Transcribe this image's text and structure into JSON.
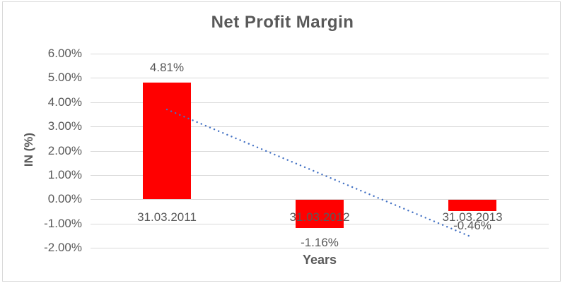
{
  "chart_data": {
    "type": "bar",
    "title": "Net Profit Margin",
    "xlabel": "Years",
    "ylabel": "IN (%)",
    "categories": [
      "31.03.2011",
      "31.03.2012",
      "31.03.2013"
    ],
    "values": [
      4.81,
      -1.16,
      -0.46
    ],
    "data_labels": [
      "4.81%",
      "-1.16%",
      "-0.46%"
    ],
    "ytick_labels": [
      "6.00%",
      "5.00%",
      "4.00%",
      "3.00%",
      "2.00%",
      "1.00%",
      "0.00%",
      "-1.00%",
      "-2.00%"
    ],
    "ytick_values": [
      6,
      5,
      4,
      3,
      2,
      1,
      0,
      -1,
      -2
    ],
    "ylim": [
      -2,
      6
    ],
    "grid": true,
    "legend": "none",
    "colors": {
      "bar": "#ff0000",
      "text": "#595959",
      "gridline": "#d9d9d9",
      "trendline": "#4472c4",
      "background": "#ffffff"
    },
    "trendline": {
      "type": "linear",
      "style": "dotted",
      "color": "#4472c4",
      "start_value": 3.7,
      "end_value": -1.57
    }
  }
}
